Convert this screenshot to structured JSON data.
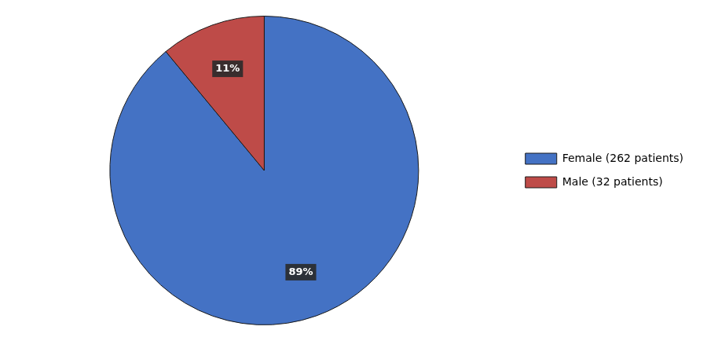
{
  "chart_data": {
    "type": "pie",
    "categories": [
      "Female (262 patients)",
      "Male (32 patients)"
    ],
    "values": [
      89,
      11
    ],
    "value_labels": [
      "89%",
      "11%"
    ],
    "colors": [
      "#4472C4",
      "#BE4B48"
    ],
    "data_labels": true,
    "legend": "right"
  }
}
